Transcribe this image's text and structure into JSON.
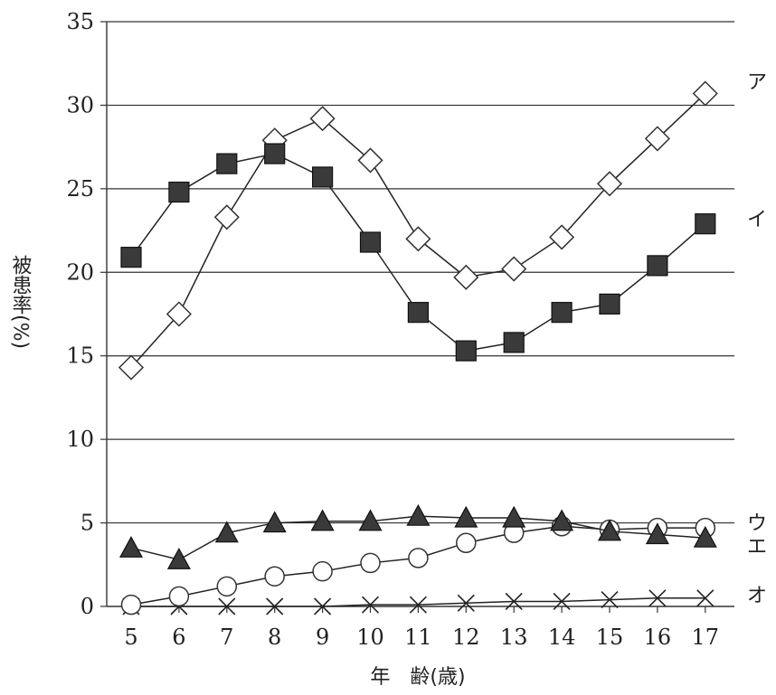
{
  "chart_data": {
    "type": "line",
    "ylabel": "被患率(%)",
    "xlabel": "年　齢(歳)",
    "ylim": [
      0,
      35
    ],
    "yticks": [
      0,
      5,
      10,
      15,
      20,
      25,
      30,
      35
    ],
    "grid": "horizontal",
    "x": [
      5,
      6,
      7,
      8,
      9,
      10,
      11,
      12,
      13,
      14,
      15,
      16,
      17
    ],
    "series": [
      {
        "name": "ア",
        "marker": "diamond-open",
        "values": [
          14.3,
          17.5,
          23.3,
          27.9,
          29.2,
          26.7,
          22.0,
          19.7,
          20.2,
          22.1,
          25.3,
          28.0,
          30.7
        ]
      },
      {
        "name": "イ",
        "marker": "square-filled",
        "values": [
          20.9,
          24.8,
          26.5,
          27.1,
          25.7,
          21.8,
          17.6,
          15.3,
          15.8,
          17.6,
          18.1,
          20.4,
          22.9
        ]
      },
      {
        "name": "ウ",
        "marker": "circle-open",
        "values": [
          0.1,
          0.6,
          1.2,
          1.8,
          2.1,
          2.6,
          2.9,
          3.8,
          4.4,
          4.8,
          4.6,
          4.7,
          4.7
        ]
      },
      {
        "name": "エ",
        "marker": "triangle-filled",
        "values": [
          3.5,
          2.8,
          4.4,
          5.0,
          5.1,
          5.1,
          5.4,
          5.3,
          5.3,
          5.1,
          4.5,
          4.3,
          4.1
        ]
      },
      {
        "name": "オ",
        "marker": "cross",
        "values": [
          0.0,
          0.0,
          0.0,
          0.0,
          0.0,
          0.1,
          0.1,
          0.2,
          0.3,
          0.3,
          0.4,
          0.5,
          0.5
        ]
      }
    ]
  }
}
